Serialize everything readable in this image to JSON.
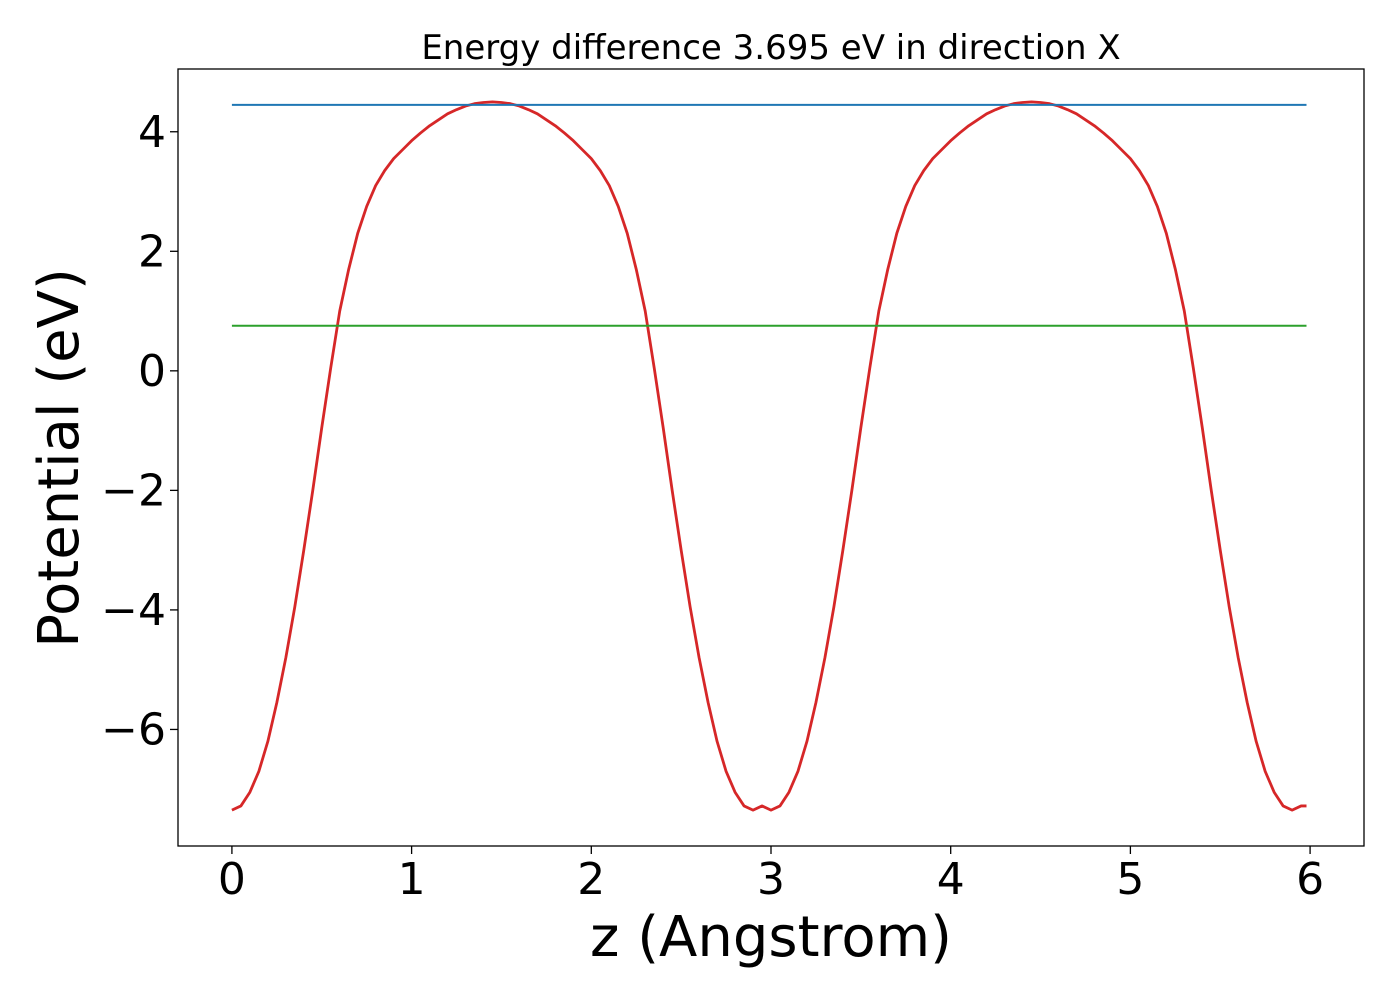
{
  "chart_data": {
    "type": "line",
    "title": "Energy difference 3.695 eV in direction X",
    "xlabel": "z (Angstrom)",
    "ylabel": "Potential (eV)",
    "xlim": [
      -0.3,
      6.3
    ],
    "ylim": [
      -7.95,
      5.05
    ],
    "xticks": [
      0,
      1,
      2,
      3,
      4,
      5,
      6
    ],
    "xtick_labels": [
      "0",
      "1",
      "2",
      "3",
      "4",
      "5",
      "6"
    ],
    "yticks": [
      -6,
      -4,
      -2,
      0,
      2,
      4
    ],
    "ytick_labels": [
      "−6",
      "−4",
      "−2",
      "0",
      "2",
      "4"
    ],
    "grid": false,
    "legend": "none",
    "series": [
      {
        "color": "#d62728",
        "x": [
          0.0,
          0.05,
          0.1,
          0.15,
          0.2,
          0.25,
          0.3,
          0.35,
          0.4,
          0.45,
          0.5,
          0.55,
          0.6,
          0.65,
          0.7,
          0.75,
          0.8,
          0.85,
          0.9,
          0.95,
          1.0,
          1.05,
          1.1,
          1.15,
          1.2,
          1.25,
          1.3,
          1.35,
          1.4,
          1.45,
          1.5,
          1.55,
          1.6,
          1.65,
          1.7,
          1.75,
          1.8,
          1.85,
          1.9,
          1.95,
          2.0,
          2.05,
          2.1,
          2.15,
          2.2,
          2.25,
          2.3,
          2.35,
          2.4,
          2.45,
          2.5,
          2.55,
          2.6,
          2.65,
          2.7,
          2.75,
          2.8,
          2.85,
          2.9,
          2.95,
          3.0,
          3.05,
          3.1,
          3.15,
          3.2,
          3.25,
          3.3,
          3.35,
          3.4,
          3.45,
          3.5,
          3.55,
          3.6,
          3.65,
          3.7,
          3.75,
          3.8,
          3.85,
          3.9,
          3.95,
          4.0,
          4.05,
          4.1,
          4.15,
          4.2,
          4.25,
          4.3,
          4.35,
          4.4,
          4.45,
          4.5,
          4.55,
          4.6,
          4.65,
          4.7,
          4.75,
          4.8,
          4.85,
          4.9,
          4.95,
          5.0,
          5.05,
          5.1,
          5.15,
          5.2,
          5.25,
          5.3,
          5.35,
          5.4,
          5.45,
          5.5,
          5.55,
          5.6,
          5.65,
          5.7,
          5.75,
          5.8,
          5.85,
          5.9,
          5.95,
          5.98
        ],
        "y": [
          -7.35,
          -7.28,
          -7.05,
          -6.7,
          -6.2,
          -5.55,
          -4.8,
          -3.95,
          -3.0,
          -2.0,
          -0.95,
          0.05,
          1.0,
          1.7,
          2.3,
          2.75,
          3.1,
          3.35,
          3.55,
          3.7,
          3.85,
          3.98,
          4.1,
          4.2,
          4.3,
          4.37,
          4.43,
          4.47,
          4.49,
          4.5,
          4.49,
          4.47,
          4.43,
          4.37,
          4.3,
          4.2,
          4.1,
          3.98,
          3.85,
          3.7,
          3.55,
          3.35,
          3.1,
          2.75,
          2.3,
          1.7,
          1.0,
          0.05,
          -0.95,
          -2.0,
          -3.0,
          -3.95,
          -4.8,
          -5.55,
          -6.2,
          -6.7,
          -7.05,
          -7.28,
          -7.35,
          -7.28,
          -7.35,
          -7.28,
          -7.05,
          -6.7,
          -6.2,
          -5.55,
          -4.8,
          -3.95,
          -3.0,
          -2.0,
          -0.95,
          0.05,
          1.0,
          1.7,
          2.3,
          2.75,
          3.1,
          3.35,
          3.55,
          3.7,
          3.85,
          3.98,
          4.1,
          4.2,
          4.3,
          4.37,
          4.43,
          4.47,
          4.49,
          4.5,
          4.49,
          4.47,
          4.43,
          4.37,
          4.3,
          4.2,
          4.1,
          3.98,
          3.85,
          3.7,
          3.55,
          3.35,
          3.1,
          2.75,
          2.3,
          1.7,
          1.0,
          0.05,
          -0.95,
          -2.0,
          -3.0,
          -3.95,
          -4.8,
          -5.55,
          -6.2,
          -6.7,
          -7.05,
          -7.28,
          -7.35,
          -7.28,
          -7.28
        ]
      },
      {
        "color": "#1f77b4",
        "x": [
          0.0,
          5.98
        ],
        "y": [
          4.45,
          4.45
        ]
      },
      {
        "color": "#2ca02c",
        "x": [
          0.0,
          5.98
        ],
        "y": [
          0.755,
          0.755
        ]
      }
    ]
  }
}
